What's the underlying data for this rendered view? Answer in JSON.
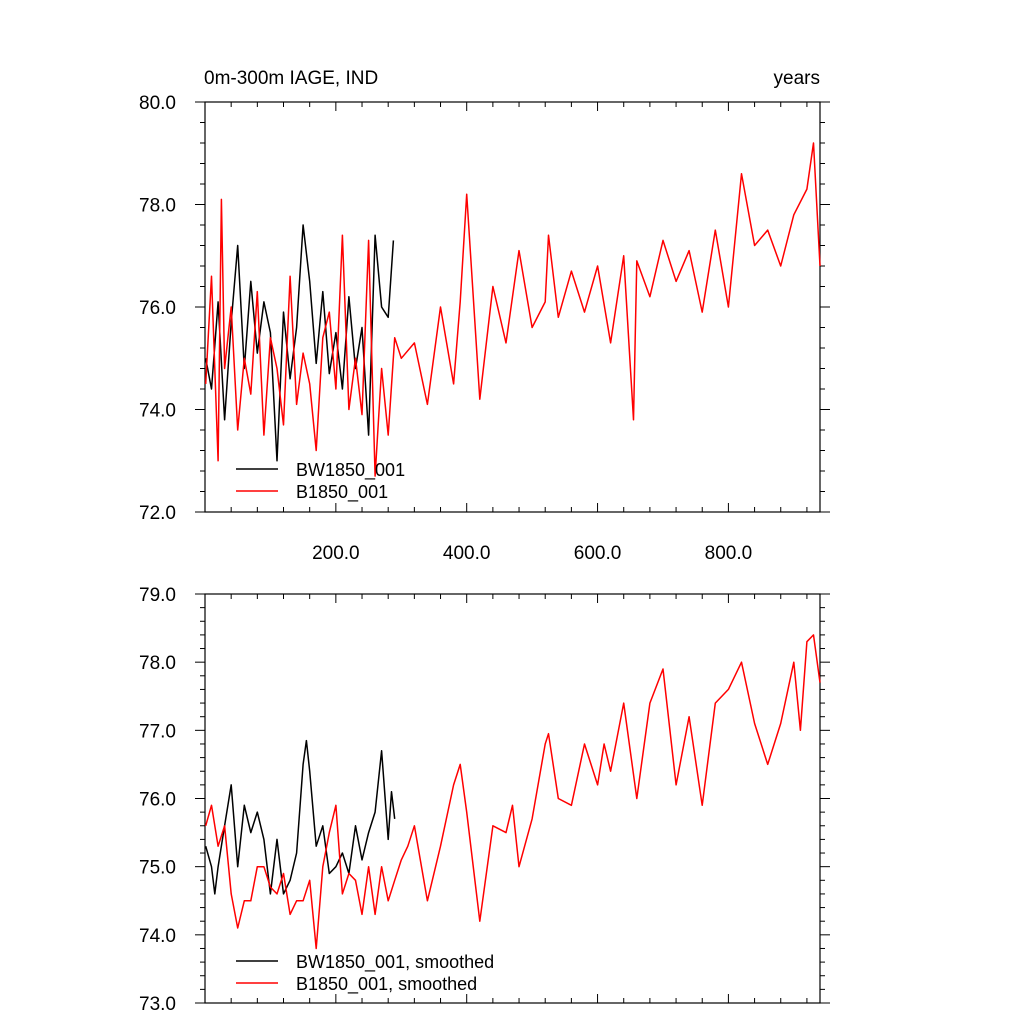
{
  "figure": {
    "title_left": "0m-300m IAGE, IND",
    "title_right": "years"
  },
  "chart_data": [
    {
      "type": "line",
      "title": "0m-300m IAGE, IND",
      "units": "years",
      "xlim": [
        0,
        940
      ],
      "ylim": [
        72,
        80
      ],
      "x_ticks": [
        200,
        400,
        600,
        800
      ],
      "x_tick_labels": [
        "200.0",
        "400.0",
        "600.0",
        "800.0"
      ],
      "y_ticks": [
        72,
        74,
        76,
        78,
        80
      ],
      "y_tick_labels": [
        "72.0",
        "74.0",
        "76.0",
        "78.0",
        "80.0"
      ],
      "legend_position": "bottom-left",
      "series": [
        {
          "name": "BW1850_001",
          "color": "#000000",
          "x": [
            1,
            10,
            20,
            30,
            40,
            50,
            60,
            70,
            80,
            90,
            100,
            110,
            120,
            130,
            140,
            150,
            160,
            170,
            180,
            190,
            200,
            210,
            220,
            230,
            240,
            250,
            260,
            270,
            280,
            288
          ],
          "y": [
            75.0,
            74.4,
            76.1,
            73.8,
            75.7,
            77.2,
            74.8,
            76.5,
            75.1,
            76.1,
            75.5,
            73.0,
            75.9,
            74.6,
            75.6,
            77.6,
            76.5,
            74.9,
            76.3,
            74.7,
            75.5,
            74.4,
            76.2,
            74.8,
            75.6,
            73.5,
            77.4,
            76.0,
            75.8,
            77.3
          ]
        },
        {
          "name": "B1850_001",
          "color": "#ff0000",
          "x": [
            1,
            10,
            20,
            25,
            30,
            40,
            50,
            60,
            70,
            80,
            90,
            100,
            110,
            120,
            130,
            140,
            150,
            160,
            170,
            180,
            190,
            200,
            210,
            220,
            230,
            240,
            250,
            260,
            270,
            280,
            290,
            300,
            320,
            340,
            360,
            380,
            390,
            400,
            420,
            440,
            460,
            480,
            500,
            520,
            525,
            540,
            560,
            580,
            600,
            620,
            640,
            655,
            660,
            680,
            700,
            720,
            740,
            760,
            780,
            800,
            820,
            840,
            860,
            880,
            900,
            920,
            930,
            940
          ],
          "y": [
            74.5,
            76.6,
            73.0,
            78.1,
            74.8,
            76.0,
            73.6,
            75.0,
            74.3,
            76.3,
            73.5,
            75.4,
            74.8,
            73.7,
            76.6,
            74.1,
            75.1,
            74.5,
            73.2,
            75.4,
            75.9,
            74.4,
            77.4,
            74.0,
            75.0,
            73.9,
            77.3,
            72.7,
            74.8,
            73.5,
            75.4,
            75.0,
            75.3,
            74.1,
            76.0,
            74.5,
            76.1,
            78.2,
            74.2,
            76.4,
            75.3,
            77.1,
            75.6,
            76.1,
            77.4,
            75.8,
            76.7,
            75.9,
            76.8,
            75.3,
            77.0,
            73.8,
            76.9,
            76.2,
            77.3,
            76.5,
            77.1,
            75.9,
            77.5,
            76.0,
            78.6,
            77.2,
            77.5,
            76.8,
            77.8,
            78.3,
            79.2,
            76.8
          ]
        }
      ]
    },
    {
      "type": "line",
      "title": "",
      "xlim": [
        0,
        940
      ],
      "ylim": [
        73,
        79
      ],
      "y_ticks": [
        73,
        74,
        75,
        76,
        77,
        78,
        79
      ],
      "y_tick_labels": [
        "73.0",
        "74.0",
        "75.0",
        "76.0",
        "77.0",
        "78.0",
        "79.0"
      ],
      "legend_position": "bottom-left",
      "series": [
        {
          "name": "BW1850_001, smoothed",
          "color": "#000000",
          "x": [
            1,
            10,
            15,
            20,
            30,
            40,
            50,
            60,
            70,
            80,
            90,
            100,
            110,
            120,
            130,
            140,
            150,
            155,
            160,
            170,
            180,
            190,
            200,
            210,
            220,
            230,
            240,
            250,
            260,
            270,
            280,
            285,
            290
          ],
          "y": [
            75.3,
            75.0,
            74.6,
            75.0,
            75.6,
            76.2,
            75.0,
            75.9,
            75.5,
            75.8,
            75.4,
            74.6,
            75.4,
            74.6,
            74.8,
            75.2,
            76.5,
            76.85,
            76.4,
            75.3,
            75.6,
            74.9,
            75.0,
            75.2,
            74.9,
            75.6,
            75.1,
            75.5,
            75.8,
            76.7,
            75.4,
            76.1,
            75.7
          ]
        },
        {
          "name": "B1850_001, smoothed",
          "color": "#ff0000",
          "x": [
            1,
            10,
            20,
            30,
            40,
            50,
            60,
            70,
            80,
            90,
            100,
            110,
            120,
            130,
            140,
            150,
            160,
            170,
            180,
            190,
            200,
            210,
            220,
            230,
            240,
            250,
            260,
            270,
            280,
            290,
            300,
            310,
            320,
            340,
            360,
            380,
            390,
            400,
            420,
            440,
            460,
            470,
            480,
            500,
            520,
            525,
            540,
            560,
            580,
            600,
            610,
            620,
            640,
            660,
            680,
            700,
            720,
            740,
            760,
            780,
            800,
            820,
            840,
            860,
            880,
            900,
            910,
            920,
            930,
            940
          ],
          "y": [
            75.6,
            75.9,
            75.3,
            75.6,
            74.6,
            74.1,
            74.5,
            74.5,
            75.0,
            75.0,
            74.7,
            74.6,
            74.9,
            74.3,
            74.5,
            74.5,
            74.8,
            73.8,
            75.0,
            75.5,
            75.9,
            74.6,
            74.9,
            74.8,
            74.3,
            75.0,
            74.3,
            75.0,
            74.5,
            74.8,
            75.1,
            75.3,
            75.6,
            74.5,
            75.3,
            76.2,
            76.5,
            75.8,
            74.2,
            75.6,
            75.5,
            75.9,
            75.0,
            75.7,
            76.8,
            76.95,
            76.0,
            75.9,
            76.8,
            76.2,
            76.8,
            76.4,
            77.4,
            76.0,
            77.4,
            77.9,
            76.2,
            77.2,
            75.9,
            77.4,
            77.6,
            78.0,
            77.1,
            76.5,
            77.1,
            78.0,
            77.0,
            78.3,
            78.4,
            77.7
          ]
        }
      ]
    }
  ]
}
